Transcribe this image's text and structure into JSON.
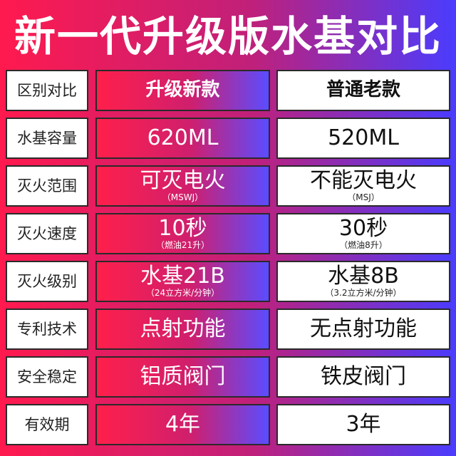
{
  "title": "新一代升级版水基对比",
  "rows": [
    {
      "label": "区别对比",
      "new": {
        "main": "升级新款",
        "sub": ""
      },
      "old": {
        "main": "普通老款",
        "sub": ""
      }
    },
    {
      "label": "水基容量",
      "new": {
        "main": "620ML",
        "sub": ""
      },
      "old": {
        "main": "520ML",
        "sub": ""
      }
    },
    {
      "label": "灭火范围",
      "new": {
        "main": "可灭电火",
        "sub": "（MSWJ）"
      },
      "old": {
        "main": "不能灭电火",
        "sub": "（MSJ）"
      }
    },
    {
      "label": "灭火速度",
      "new": {
        "main": "10秒",
        "sub": "（燃油21升）"
      },
      "old": {
        "main": "30秒",
        "sub": "（燃油8升）"
      }
    },
    {
      "label": "灭火级别",
      "new": {
        "main": "水基21B",
        "sub": "（24立方米/分钟）"
      },
      "old": {
        "main": "水基8B",
        "sub": "（3.2立方米/分钟）"
      }
    },
    {
      "label": "专利技术",
      "new": {
        "main": "点射功能",
        "sub": ""
      },
      "old": {
        "main": "无点射功能",
        "sub": ""
      }
    },
    {
      "label": "安全稳定",
      "new": {
        "main": "铝质阀门",
        "sub": ""
      },
      "old": {
        "main": "铁皮阀门",
        "sub": ""
      }
    },
    {
      "label": "有效期",
      "new": {
        "main": "4年",
        "sub": ""
      },
      "old": {
        "main": "3年",
        "sub": ""
      }
    }
  ]
}
